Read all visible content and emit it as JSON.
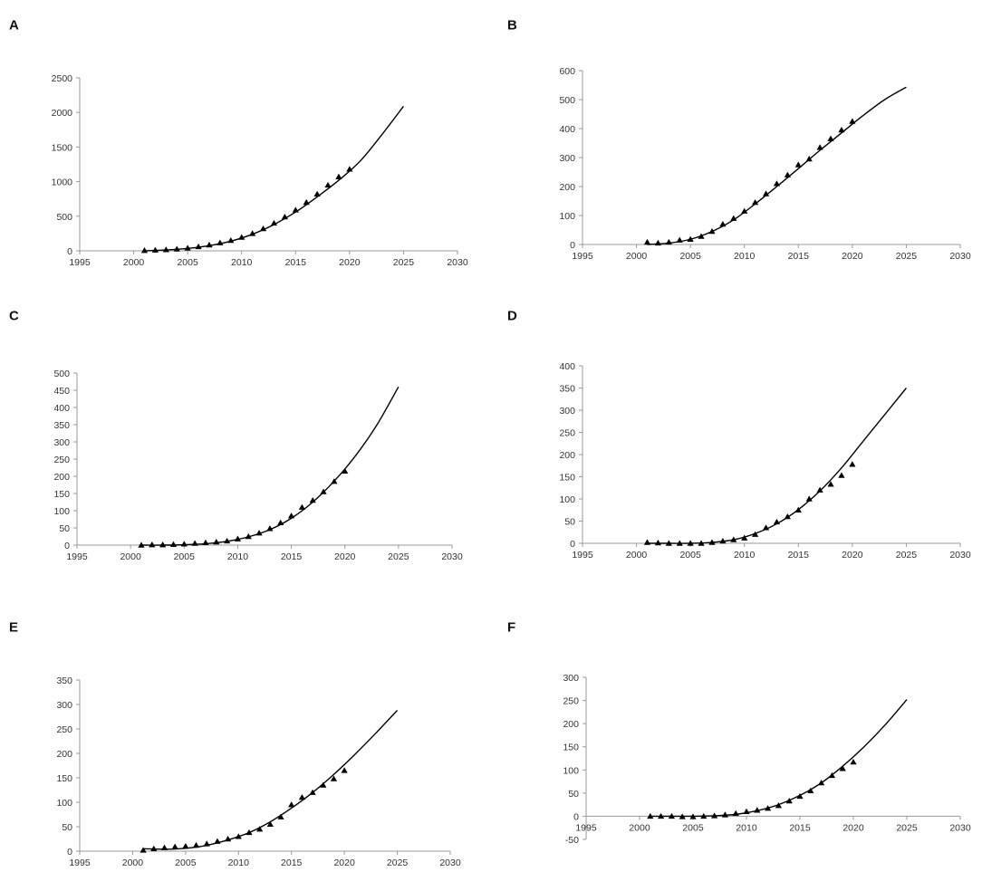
{
  "chart_data": [
    {
      "panel": "A",
      "type": "scatter",
      "title": "",
      "xlabel": "",
      "ylabel": "",
      "xlim": [
        1995,
        2030
      ],
      "ylim": [
        0,
        2500
      ],
      "xticks": [
        1995,
        2000,
        2005,
        2010,
        2015,
        2020,
        2025,
        2030
      ],
      "yticks": [
        0,
        500,
        1000,
        1500,
        2000,
        2500
      ],
      "grid": false,
      "legend": "none",
      "series": [
        {
          "kind": "points",
          "marker": "triangle",
          "x": [
            2001,
            2002,
            2003,
            2004,
            2005,
            2006,
            2007,
            2008,
            2009,
            2010,
            2011,
            2012,
            2013,
            2014,
            2015,
            2016,
            2017,
            2018,
            2019,
            2020
          ],
          "y": [
            5,
            10,
            15,
            25,
            40,
            60,
            85,
            115,
            150,
            195,
            250,
            320,
            400,
            490,
            590,
            700,
            820,
            950,
            1070,
            1180
          ]
        },
        {
          "kind": "line",
          "x": [
            2001,
            2003,
            2005,
            2007,
            2009,
            2011,
            2013,
            2015,
            2017,
            2019,
            2021,
            2023,
            2025
          ],
          "y": [
            0,
            12,
            35,
            75,
            140,
            240,
            380,
            560,
            780,
            1020,
            1300,
            1680,
            2090
          ]
        }
      ]
    },
    {
      "panel": "B",
      "type": "scatter",
      "title": "",
      "xlabel": "",
      "ylabel": "",
      "xlim": [
        1995,
        2030
      ],
      "ylim": [
        0,
        600
      ],
      "xticks": [
        1995,
        2000,
        2005,
        2010,
        2015,
        2020,
        2025,
        2030
      ],
      "yticks": [
        0,
        100,
        200,
        300,
        400,
        500,
        600
      ],
      "grid": false,
      "legend": "none",
      "series": [
        {
          "kind": "points",
          "marker": "triangle",
          "x": [
            2001,
            2002,
            2003,
            2004,
            2005,
            2006,
            2007,
            2008,
            2009,
            2010,
            2011,
            2012,
            2013,
            2014,
            2015,
            2016,
            2017,
            2018,
            2019,
            2020
          ],
          "y": [
            8,
            5,
            8,
            15,
            18,
            28,
            45,
            70,
            90,
            115,
            145,
            175,
            210,
            240,
            275,
            295,
            335,
            365,
            395,
            425
          ]
        },
        {
          "kind": "line",
          "x": [
            2001,
            2003,
            2005,
            2007,
            2009,
            2011,
            2013,
            2015,
            2017,
            2019,
            2021,
            2023,
            2025
          ],
          "y": [
            0,
            5,
            18,
            45,
            85,
            140,
            200,
            262,
            325,
            385,
            445,
            500,
            543
          ]
        }
      ]
    },
    {
      "panel": "C",
      "type": "scatter",
      "title": "",
      "xlabel": "",
      "ylabel": "",
      "xlim": [
        1995,
        2030
      ],
      "ylim": [
        0,
        500
      ],
      "xticks": [
        1995,
        2000,
        2005,
        2010,
        2015,
        2020,
        2025,
        2030
      ],
      "yticks": [
        0,
        50,
        100,
        150,
        200,
        250,
        300,
        350,
        400,
        450,
        500
      ],
      "grid": false,
      "legend": "none",
      "series": [
        {
          "kind": "points",
          "marker": "triangle",
          "x": [
            2001,
            2002,
            2003,
            2004,
            2005,
            2006,
            2007,
            2008,
            2009,
            2010,
            2011,
            2012,
            2013,
            2014,
            2015,
            2016,
            2017,
            2018,
            2019,
            2020
          ],
          "y": [
            0,
            1,
            1,
            2,
            3,
            5,
            7,
            9,
            12,
            18,
            25,
            35,
            48,
            65,
            85,
            110,
            130,
            155,
            185,
            215
          ]
        },
        {
          "kind": "line",
          "x": [
            2001,
            2003,
            2005,
            2007,
            2009,
            2011,
            2013,
            2015,
            2017,
            2019,
            2021,
            2023,
            2025
          ],
          "y": [
            0,
            0,
            1,
            4,
            11,
            24,
            45,
            78,
            125,
            186,
            260,
            350,
            460
          ]
        }
      ]
    },
    {
      "panel": "D",
      "type": "scatter",
      "title": "",
      "xlabel": "",
      "ylabel": "",
      "xlim": [
        1995,
        2030
      ],
      "ylim": [
        0,
        400
      ],
      "xticks": [
        1995,
        2000,
        2005,
        2010,
        2015,
        2020,
        2025,
        2030
      ],
      "yticks": [
        0,
        50,
        100,
        150,
        200,
        250,
        300,
        350,
        400
      ],
      "grid": false,
      "legend": "none",
      "series": [
        {
          "kind": "points",
          "marker": "triangle",
          "x": [
            2001,
            2002,
            2003,
            2004,
            2005,
            2006,
            2007,
            2008,
            2009,
            2010,
            2011,
            2012,
            2013,
            2014,
            2015,
            2016,
            2017,
            2018,
            2019,
            2020
          ],
          "y": [
            2,
            1,
            0,
            0,
            0,
            0,
            2,
            5,
            8,
            12,
            20,
            35,
            48,
            60,
            75,
            100,
            120,
            133,
            153,
            178
          ]
        },
        {
          "kind": "line",
          "x": [
            2001,
            2003,
            2005,
            2007,
            2009,
            2011,
            2013,
            2015,
            2017,
            2019,
            2021,
            2023,
            2025
          ],
          "y": [
            0,
            0,
            0,
            2,
            8,
            22,
            44,
            76,
            118,
            170,
            230,
            290,
            350
          ]
        }
      ]
    },
    {
      "panel": "E",
      "type": "scatter",
      "title": "",
      "xlabel": "",
      "ylabel": "",
      "xlim": [
        1995,
        2030
      ],
      "ylim": [
        0,
        350
      ],
      "xticks": [
        1995,
        2000,
        2005,
        2010,
        2015,
        2020,
        2025,
        2030
      ],
      "yticks": [
        0,
        50,
        100,
        150,
        200,
        250,
        300,
        350
      ],
      "grid": false,
      "legend": "none",
      "series": [
        {
          "kind": "points",
          "marker": "triangle",
          "x": [
            2001,
            2002,
            2003,
            2004,
            2005,
            2006,
            2007,
            2008,
            2009,
            2010,
            2011,
            2012,
            2013,
            2014,
            2015,
            2016,
            2017,
            2018,
            2019,
            2020
          ],
          "y": [
            2,
            5,
            7,
            9,
            10,
            12,
            15,
            20,
            25,
            30,
            38,
            45,
            55,
            70,
            95,
            110,
            120,
            135,
            148,
            165
          ]
        },
        {
          "kind": "line",
          "x": [
            2001,
            2003,
            2005,
            2007,
            2009,
            2011,
            2013,
            2015,
            2017,
            2019,
            2021,
            2023,
            2025
          ],
          "y": [
            5,
            4,
            6,
            12,
            23,
            38,
            60,
            88,
            120,
            157,
            198,
            242,
            288
          ]
        }
      ]
    },
    {
      "panel": "F",
      "type": "scatter",
      "title": "",
      "xlabel": "",
      "ylabel": "",
      "xlim": [
        1995,
        2030
      ],
      "ylim": [
        -50,
        300
      ],
      "xticks": [
        1995,
        2000,
        2005,
        2010,
        2015,
        2020,
        2025,
        2030
      ],
      "yticks": [
        -50,
        0,
        50,
        100,
        150,
        200,
        250,
        300
      ],
      "grid": false,
      "legend": "none",
      "series": [
        {
          "kind": "points",
          "marker": "triangle",
          "x": [
            2001,
            2002,
            2003,
            2004,
            2005,
            2006,
            2007,
            2008,
            2009,
            2010,
            2011,
            2012,
            2013,
            2014,
            2015,
            2016,
            2017,
            2018,
            2019,
            2020
          ],
          "y": [
            0,
            0,
            0,
            -1,
            -1,
            0,
            1,
            3,
            6,
            10,
            13,
            17,
            23,
            33,
            43,
            55,
            72,
            88,
            103,
            117
          ]
        },
        {
          "kind": "line",
          "x": [
            2001,
            2003,
            2005,
            2007,
            2009,
            2011,
            2013,
            2015,
            2017,
            2019,
            2021,
            2023,
            2025
          ],
          "y": [
            0,
            0,
            0,
            1,
            4,
            12,
            25,
            45,
            72,
            108,
            150,
            198,
            252
          ]
        }
      ]
    }
  ]
}
